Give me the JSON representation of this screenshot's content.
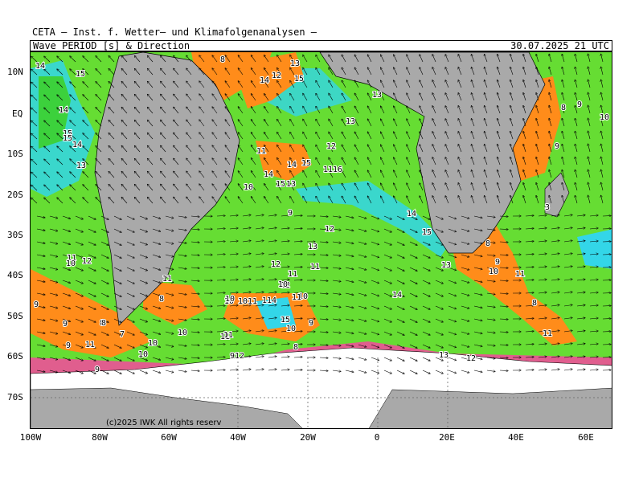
{
  "header": {
    "institute": "CETA – Inst. f. Wetter– und Klimafolgenanalysen –",
    "product": "Wave_PERIOD [s] & Direction",
    "valid_time": "30.07.2025 21 UTC"
  },
  "copyright": "(c)2025 IWK  All rights reserv",
  "axes": {
    "lat_labels": [
      "10N",
      "EQ",
      "10S",
      "20S",
      "30S",
      "40S",
      "50S",
      "60S",
      "70S"
    ],
    "lon_labels": [
      "100W",
      "80W",
      "60W",
      "40W",
      "20W",
      "0",
      "20E",
      "40E",
      "60E"
    ]
  },
  "colors": {
    "land": "#a9a9a9",
    "ice": "#ffffff",
    "period_7_8": "#ff3ea5",
    "period_8_10": "#ff8c1a",
    "period_10_12": "#3cd13c",
    "period_12_14": "#55e62a",
    "period_14_16": "#33d6e8",
    "ocean_default": "#66dd33"
  },
  "period_labels": [
    {
      "text": "14"
    },
    {
      "text": "15"
    },
    {
      "text": "8"
    },
    {
      "text": "13"
    },
    {
      "text": "14"
    },
    {
      "text": "12"
    },
    {
      "text": "15"
    },
    {
      "text": "14"
    },
    {
      "text": "13"
    },
    {
      "text": "15"
    },
    {
      "text": "15"
    },
    {
      "text": "14"
    },
    {
      "text": "13"
    },
    {
      "text": "13"
    },
    {
      "text": "12"
    },
    {
      "text": "8"
    },
    {
      "text": "9"
    },
    {
      "text": "10"
    },
    {
      "text": "9"
    },
    {
      "text": "11"
    },
    {
      "text": "14"
    },
    {
      "text": "14"
    },
    {
      "text": "15"
    },
    {
      "text": "1116"
    },
    {
      "text": "15"
    },
    {
      "text": "13"
    },
    {
      "text": "10"
    },
    {
      "text": "9"
    },
    {
      "text": "12"
    },
    {
      "text": "14"
    },
    {
      "text": "15"
    },
    {
      "text": "3"
    },
    {
      "text": "13"
    },
    {
      "text": "11"
    },
    {
      "text": "12"
    },
    {
      "text": "10"
    },
    {
      "text": "12"
    },
    {
      "text": "11"
    },
    {
      "text": "12"
    },
    {
      "text": "11"
    },
    {
      "text": "8"
    },
    {
      "text": "9"
    },
    {
      "text": "10"
    },
    {
      "text": "11"
    },
    {
      "text": "13"
    },
    {
      "text": "11"
    },
    {
      "text": "10"
    },
    {
      "text": "10"
    },
    {
      "text": "11"
    },
    {
      "text": "8"
    },
    {
      "text": "10"
    },
    {
      "text": "9"
    },
    {
      "text": "8"
    },
    {
      "text": "10"
    },
    {
      "text": "1011"
    },
    {
      "text": "114"
    },
    {
      "text": "14"
    },
    {
      "text": "9"
    },
    {
      "text": "9"
    },
    {
      "text": "8"
    },
    {
      "text": "7"
    },
    {
      "text": "10"
    },
    {
      "text": "15"
    },
    {
      "text": "10"
    },
    {
      "text": "9"
    },
    {
      "text": "11"
    },
    {
      "text": "11"
    },
    {
      "text": "10"
    },
    {
      "text": "11"
    },
    {
      "text": "8"
    },
    {
      "text": "912"
    },
    {
      "text": "10"
    },
    {
      "text": "8"
    },
    {
      "text": "13"
    },
    {
      "text": "12"
    },
    {
      "text": "9"
    },
    {
      "text": "11"
    }
  ]
}
